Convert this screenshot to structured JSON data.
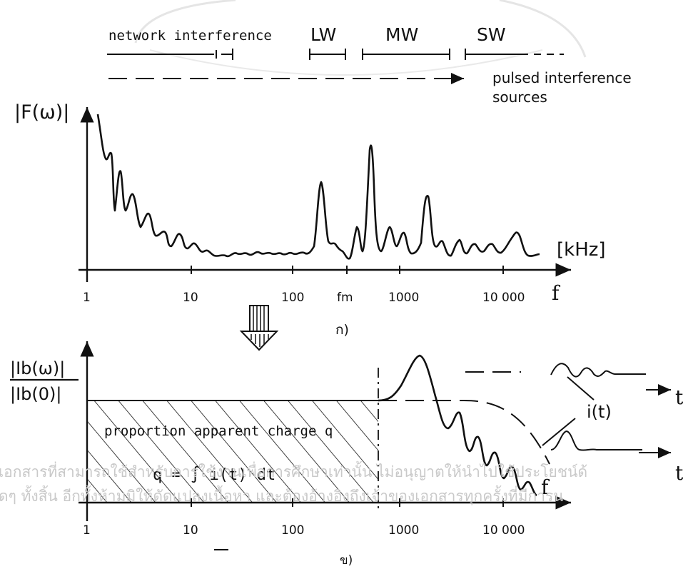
{
  "top": {
    "band_network": "network interference",
    "band_lw": "LW",
    "band_mw": "MW",
    "band_sw": "SW",
    "pulsed_line1": "pulsed interference",
    "pulsed_line2": "sources"
  },
  "plot_a": {
    "ylabel": "|F(ω)|",
    "unit": "[kHz]",
    "xlabel": "f",
    "ticks": [
      "1",
      "10",
      "100",
      "fm",
      "1000",
      "10 000"
    ],
    "caption": "ก)"
  },
  "plot_b": {
    "ylabel_num": "|Ib(ω)|",
    "ylabel_den": "|Ib(0)|",
    "region_label": "proportion apparent charge q",
    "formula": "q = ∫ i(t) dt",
    "pulse_label": "i(t)",
    "time_label_1": "t",
    "time_label_2": "t",
    "xlabel": "f",
    "ticks": [
      "1",
      "10",
      "100",
      "1000",
      "10 000"
    ],
    "caption": "ข)"
  },
  "watermark": {
    "line1": "เอกสารที่สามารถใช้สำหรับการใช้งานเพื่อการศึกษาเท่านั้น ไม่อนุญาตให้นำไปใช้ประโยชน์ด้",
    "line2": "ดๆ ทั้งสิ้น อีกทั้งห้ามมิให้ดัดแปลงเนื้อหา และต้องอ้างอิงถึงเจ้าของเอกสารทุกครั้งที่มีการน"
  }
}
